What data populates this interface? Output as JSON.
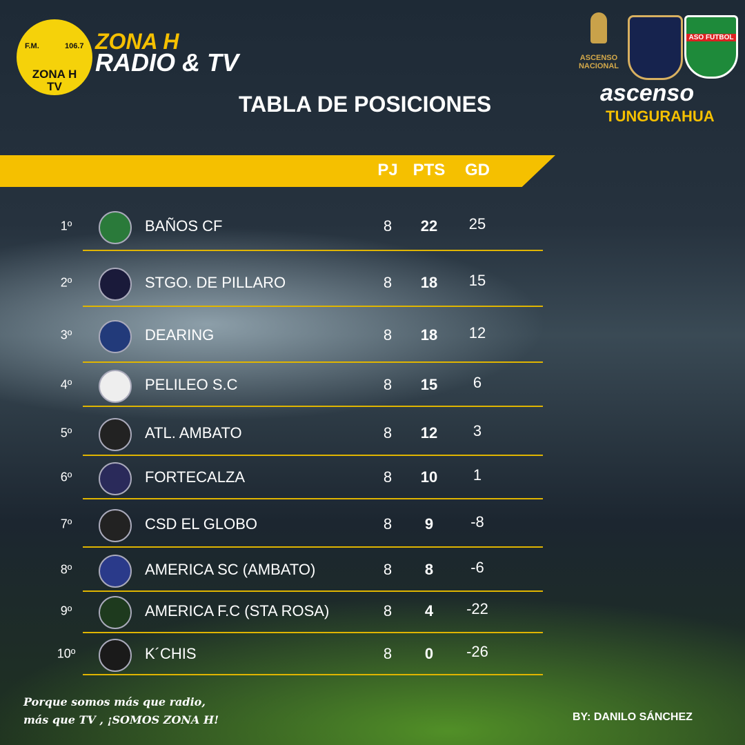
{
  "brand": {
    "logo_top": "F.M.",
    "logo_freq": "106.7",
    "logo_name": "ZONA H",
    "logo_tv": "TV",
    "title_line1": "ZONA H",
    "title_line2": "RADIO & TV"
  },
  "title": "TABLA DE POSICIONES",
  "competition": {
    "badge1": "ASCENSO NACIONAL",
    "badge3": "ASO FUTBOL",
    "name": "ascenso",
    "region": "TUNGURAHUA"
  },
  "table": {
    "columns": [
      "PJ",
      "PTS",
      "GD"
    ],
    "rows": [
      {
        "pos": "1º",
        "team": "BAÑOS CF",
        "pj": 8,
        "pts": 22,
        "gd": 25
      },
      {
        "pos": "2º",
        "team": "STGO. DE PILLARO",
        "pj": 8,
        "pts": 18,
        "gd": 15
      },
      {
        "pos": "3º",
        "team": "DEARING",
        "pj": 8,
        "pts": 18,
        "gd": 12
      },
      {
        "pos": "4º",
        "team": "PELILEO S.C",
        "pj": 8,
        "pts": 15,
        "gd": 6
      },
      {
        "pos": "5º",
        "team": "ATL. AMBATO",
        "pj": 8,
        "pts": 12,
        "gd": 3
      },
      {
        "pos": "6º",
        "team": "FORTECALZA",
        "pj": 8,
        "pts": 10,
        "gd": 1
      },
      {
        "pos": "7º",
        "team": "CSD EL GLOBO",
        "pj": 8,
        "pts": 9,
        "gd": -8
      },
      {
        "pos": "8º",
        "team": "AMERICA SC (AMBATO)",
        "pj": 8,
        "pts": 8,
        "gd": -6
      },
      {
        "pos": "9º",
        "team": "AMERICA F.C (STA ROSA)",
        "pj": 8,
        "pts": 4,
        "gd": -22
      },
      {
        "pos": "10º",
        "team": "K´CHIS",
        "pj": 8,
        "pts": 0,
        "gd": -26
      }
    ]
  },
  "footer": {
    "slogan_line1": "Porque somos más que radio,",
    "slogan_line2": "más que TV , ¡SOMOS ZONA H!",
    "credit": "BY: DANILO SÁNCHEZ"
  }
}
